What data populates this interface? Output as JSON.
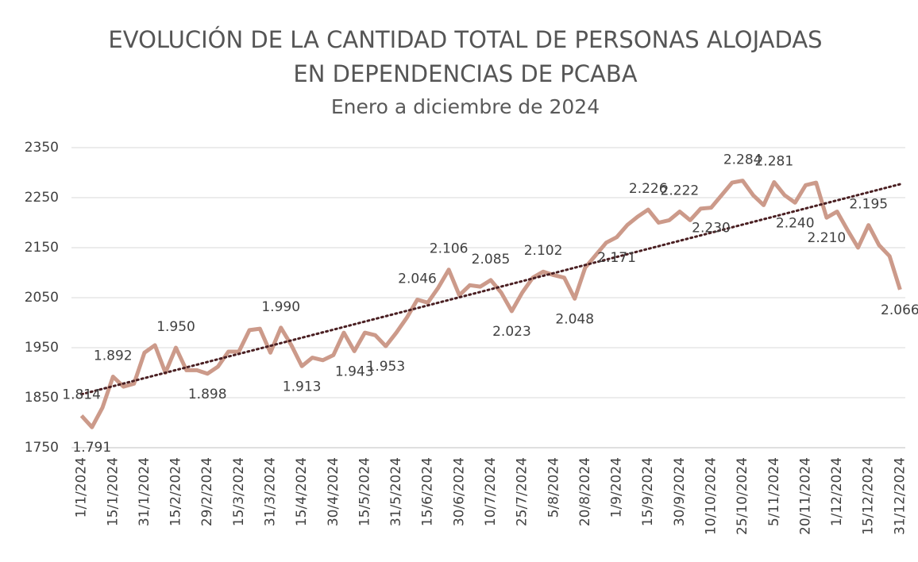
{
  "chart_data": {
    "type": "line",
    "title": [
      "EVOLUCIÓN DE LA CANTIDAD TOTAL DE PERSONAS ALOJADAS",
      "EN DEPENDENCIAS DE PCABA"
    ],
    "subtitle": "Enero a diciembre de 2024",
    "categories": [
      "1/1/2024",
      null,
      null,
      "15/1/2024",
      null,
      null,
      "31/1/2024",
      null,
      null,
      "15/2/2024",
      null,
      null,
      "29/2/2024",
      null,
      null,
      "15/3/2024",
      null,
      null,
      "31/3/2024",
      null,
      null,
      "15/4/2024",
      null,
      null,
      "30/4/2024",
      null,
      null,
      "15/5/2024",
      null,
      null,
      "31/5/2024",
      null,
      null,
      "15/6/2024",
      null,
      null,
      "30/6/2024",
      null,
      null,
      "10/7/2024",
      null,
      null,
      "25/7/2024",
      null,
      null,
      "5/8/2024",
      null,
      null,
      "20/8/2024",
      null,
      null,
      "1/9/2024",
      null,
      null,
      "15/9/2024",
      null,
      null,
      "30/9/2024",
      null,
      null,
      "10/10/2024",
      null,
      null,
      "25/10/2024",
      null,
      null,
      "5/11/2024",
      null,
      null,
      "20/11/2024",
      null,
      null,
      "1/12/2024",
      null,
      null,
      "15/12/2024",
      null,
      null,
      "31/12/2024"
    ],
    "values": [
      1814,
      1791,
      1830,
      1892,
      1872,
      1878,
      1940,
      1955,
      1900,
      1950,
      1905,
      1905,
      1898,
      1912,
      1942,
      1942,
      1985,
      1988,
      1940,
      1990,
      1955,
      1913,
      1930,
      1925,
      1935,
      1980,
      1943,
      1980,
      1975,
      1953,
      1980,
      2010,
      2046,
      2040,
      2070,
      2106,
      2055,
      2075,
      2072,
      2085,
      2060,
      2023,
      2060,
      2090,
      2102,
      2095,
      2090,
      2048,
      2110,
      2135,
      2160,
      2171,
      2195,
      2212,
      2226,
      2200,
      2205,
      2222,
      2205,
      2228,
      2230,
      2255,
      2280,
      2284,
      2255,
      2235,
      2281,
      2255,
      2240,
      2275,
      2280,
      2210,
      2222,
      2185,
      2150,
      2195,
      2155,
      2133,
      2066
    ],
    "value_labels": [
      "1.814",
      "1.791",
      null,
      "1.892",
      null,
      null,
      null,
      null,
      null,
      "1.950",
      null,
      null,
      "1.898",
      null,
      null,
      null,
      null,
      null,
      null,
      "1.990",
      null,
      "1.913",
      null,
      null,
      null,
      null,
      "1.943",
      null,
      null,
      "1.953",
      null,
      null,
      "2.046",
      null,
      null,
      "2.106",
      null,
      null,
      null,
      "2.085",
      null,
      "2.023",
      null,
      null,
      "2.102",
      null,
      null,
      "2.048",
      null,
      null,
      null,
      "2.171",
      null,
      null,
      "2.226",
      null,
      null,
      "2.222",
      null,
      null,
      "2.230",
      null,
      null,
      "2.284",
      null,
      null,
      "2.281",
      null,
      "2.240",
      null,
      null,
      "2.210",
      null,
      null,
      null,
      "2.195",
      null,
      null,
      "2.066"
    ],
    "color": "#cc9a8a",
    "trendline": {
      "type": "linear",
      "color": "#4a1f22"
    },
    "ylim": [
      1750,
      2350
    ],
    "yticks": [
      1750,
      1850,
      1950,
      2050,
      2150,
      2250,
      2350
    ],
    "grid": true
  }
}
